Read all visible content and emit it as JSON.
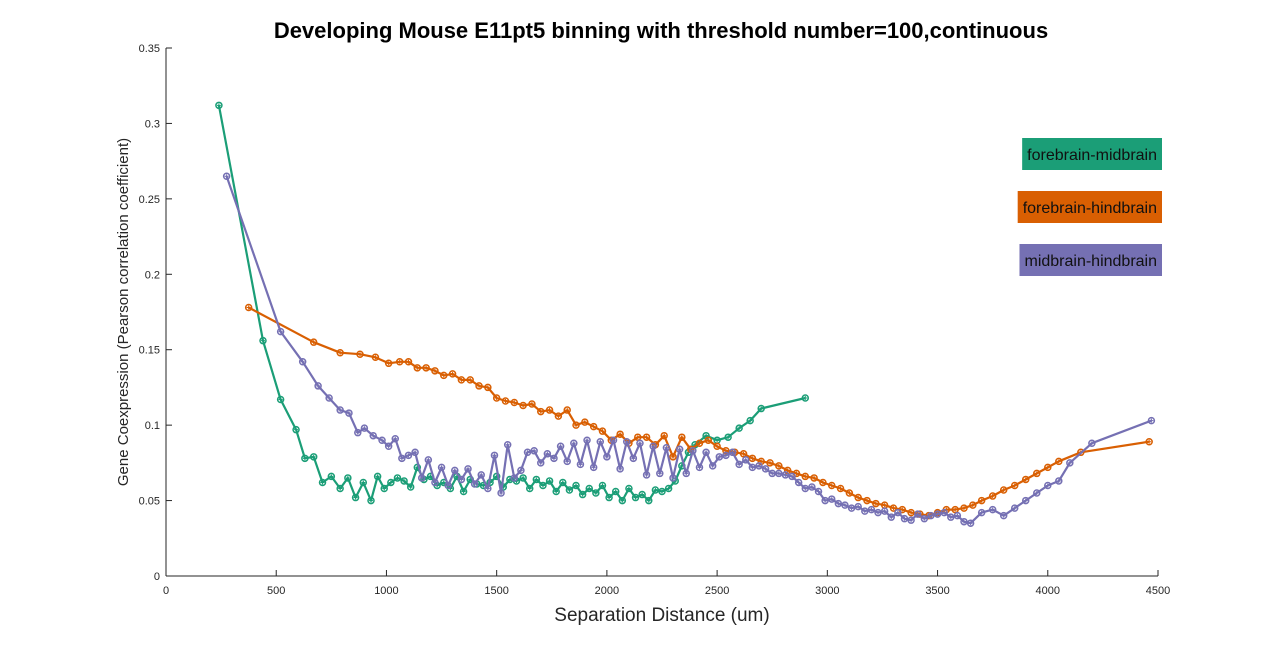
{
  "chart_data": {
    "type": "line",
    "title": "Developing Mouse E11pt5 binning with threshold number=100,continuous",
    "xlabel": "Separation Distance (um)",
    "ylabel": "Gene Coexpression (Pearson correlation coefficient)",
    "xlim": [
      0,
      4500
    ],
    "ylim": [
      0,
      0.35
    ],
    "xticks": [
      0,
      500,
      1000,
      1500,
      2000,
      2500,
      3000,
      3500,
      4000,
      4500
    ],
    "yticks": [
      0,
      0.05,
      0.1,
      0.15,
      0.2,
      0.25,
      0.3,
      0.35
    ],
    "xtick_labels": [
      "0",
      "500",
      "1000",
      "1500",
      "2000",
      "2500",
      "3000",
      "3500",
      "4000",
      "4500"
    ],
    "ytick_labels": [
      "0",
      "0.05",
      "0.1",
      "0.15",
      "0.2",
      "0.25",
      "0.3",
      "0.35"
    ],
    "grid": false,
    "legend_placement": "top-right",
    "series": [
      {
        "name": "forebrain-midbrain",
        "color": "#1b9e77",
        "x": [
          240,
          440,
          520,
          590,
          630,
          670,
          710,
          750,
          790,
          825,
          860,
          895,
          930,
          960,
          990,
          1020,
          1050,
          1080,
          1110,
          1140,
          1170,
          1200,
          1230,
          1260,
          1290,
          1320,
          1350,
          1380,
          1410,
          1440,
          1470,
          1500,
          1530,
          1560,
          1590,
          1620,
          1650,
          1680,
          1710,
          1740,
          1770,
          1800,
          1830,
          1860,
          1890,
          1920,
          1950,
          1980,
          2010,
          2040,
          2070,
          2100,
          2130,
          2160,
          2190,
          2220,
          2250,
          2280,
          2310,
          2340,
          2370,
          2400,
          2450,
          2500,
          2550,
          2600,
          2650,
          2700,
          2900
        ],
        "y": [
          0.312,
          0.156,
          0.117,
          0.097,
          0.078,
          0.079,
          0.062,
          0.066,
          0.058,
          0.065,
          0.052,
          0.062,
          0.05,
          0.066,
          0.058,
          0.062,
          0.065,
          0.063,
          0.059,
          0.072,
          0.064,
          0.066,
          0.06,
          0.062,
          0.058,
          0.066,
          0.056,
          0.064,
          0.061,
          0.06,
          0.062,
          0.066,
          0.059,
          0.064,
          0.063,
          0.065,
          0.058,
          0.064,
          0.06,
          0.063,
          0.056,
          0.062,
          0.057,
          0.06,
          0.054,
          0.058,
          0.055,
          0.06,
          0.052,
          0.056,
          0.05,
          0.058,
          0.052,
          0.054,
          0.05,
          0.057,
          0.056,
          0.058,
          0.063,
          0.073,
          0.082,
          0.087,
          0.093,
          0.09,
          0.092,
          0.098,
          0.103,
          0.111,
          0.118
        ]
      },
      {
        "name": "forebrain-hindbrain",
        "color": "#d95f02",
        "x": [
          375,
          670,
          790,
          880,
          950,
          1010,
          1060,
          1100,
          1140,
          1180,
          1220,
          1260,
          1300,
          1340,
          1380,
          1420,
          1460,
          1500,
          1540,
          1580,
          1620,
          1660,
          1700,
          1740,
          1780,
          1820,
          1860,
          1900,
          1940,
          1980,
          2020,
          2060,
          2100,
          2140,
          2180,
          2220,
          2260,
          2300,
          2340,
          2380,
          2420,
          2460,
          2500,
          2540,
          2580,
          2620,
          2660,
          2700,
          2740,
          2780,
          2820,
          2860,
          2900,
          2940,
          2980,
          3020,
          3060,
          3100,
          3140,
          3180,
          3220,
          3260,
          3300,
          3340,
          3380,
          3420,
          3460,
          3500,
          3540,
          3580,
          3620,
          3660,
          3700,
          3750,
          3800,
          3850,
          3900,
          3950,
          4000,
          4050,
          4150,
          4460
        ],
        "y": [
          0.178,
          0.155,
          0.148,
          0.147,
          0.145,
          0.141,
          0.142,
          0.142,
          0.138,
          0.138,
          0.136,
          0.133,
          0.134,
          0.13,
          0.13,
          0.126,
          0.125,
          0.118,
          0.116,
          0.115,
          0.113,
          0.114,
          0.109,
          0.11,
          0.106,
          0.11,
          0.1,
          0.102,
          0.099,
          0.096,
          0.09,
          0.094,
          0.088,
          0.092,
          0.092,
          0.087,
          0.093,
          0.079,
          0.092,
          0.084,
          0.088,
          0.09,
          0.086,
          0.083,
          0.082,
          0.081,
          0.078,
          0.076,
          0.075,
          0.073,
          0.07,
          0.068,
          0.066,
          0.065,
          0.062,
          0.06,
          0.058,
          0.055,
          0.052,
          0.05,
          0.048,
          0.047,
          0.045,
          0.044,
          0.042,
          0.041,
          0.04,
          0.042,
          0.044,
          0.044,
          0.045,
          0.047,
          0.05,
          0.053,
          0.057,
          0.06,
          0.064,
          0.068,
          0.072,
          0.076,
          0.082,
          0.089
        ]
      },
      {
        "name": "midbrain-hindbrain",
        "color": "#7570b3",
        "x": [
          275,
          520,
          620,
          690,
          740,
          790,
          830,
          870,
          900,
          940,
          980,
          1010,
          1040,
          1070,
          1100,
          1130,
          1160,
          1190,
          1220,
          1250,
          1280,
          1310,
          1340,
          1370,
          1400,
          1430,
          1460,
          1490,
          1520,
          1550,
          1580,
          1610,
          1640,
          1670,
          1700,
          1730,
          1760,
          1790,
          1820,
          1850,
          1880,
          1910,
          1940,
          1970,
          2000,
          2030,
          2060,
          2090,
          2120,
          2150,
          2180,
          2210,
          2240,
          2270,
          2300,
          2330,
          2360,
          2390,
          2420,
          2450,
          2480,
          2510,
          2540,
          2570,
          2600,
          2630,
          2660,
          2690,
          2720,
          2750,
          2780,
          2810,
          2840,
          2870,
          2900,
          2930,
          2960,
          2990,
          3020,
          3050,
          3080,
          3110,
          3140,
          3170,
          3200,
          3230,
          3260,
          3290,
          3320,
          3350,
          3380,
          3410,
          3440,
          3470,
          3500,
          3530,
          3560,
          3590,
          3620,
          3650,
          3700,
          3750,
          3800,
          3850,
          3900,
          3950,
          4000,
          4050,
          4100,
          4200,
          4470
        ],
        "y": [
          0.265,
          0.162,
          0.142,
          0.126,
          0.118,
          0.11,
          0.108,
          0.095,
          0.098,
          0.093,
          0.09,
          0.086,
          0.091,
          0.078,
          0.08,
          0.082,
          0.065,
          0.077,
          0.062,
          0.072,
          0.06,
          0.07,
          0.064,
          0.071,
          0.061,
          0.067,
          0.058,
          0.08,
          0.055,
          0.087,
          0.065,
          0.07,
          0.082,
          0.083,
          0.075,
          0.081,
          0.078,
          0.086,
          0.076,
          0.088,
          0.074,
          0.09,
          0.072,
          0.089,
          0.079,
          0.09,
          0.071,
          0.089,
          0.078,
          0.088,
          0.067,
          0.086,
          0.068,
          0.085,
          0.065,
          0.084,
          0.068,
          0.083,
          0.072,
          0.082,
          0.073,
          0.079,
          0.08,
          0.082,
          0.074,
          0.077,
          0.072,
          0.073,
          0.071,
          0.068,
          0.068,
          0.067,
          0.066,
          0.062,
          0.058,
          0.059,
          0.056,
          0.05,
          0.051,
          0.048,
          0.047,
          0.045,
          0.046,
          0.043,
          0.044,
          0.042,
          0.043,
          0.039,
          0.042,
          0.038,
          0.037,
          0.041,
          0.038,
          0.04,
          0.041,
          0.042,
          0.039,
          0.04,
          0.036,
          0.035,
          0.042,
          0.044,
          0.04,
          0.045,
          0.05,
          0.055,
          0.06,
          0.063,
          0.075,
          0.088,
          0.103
        ]
      }
    ]
  }
}
